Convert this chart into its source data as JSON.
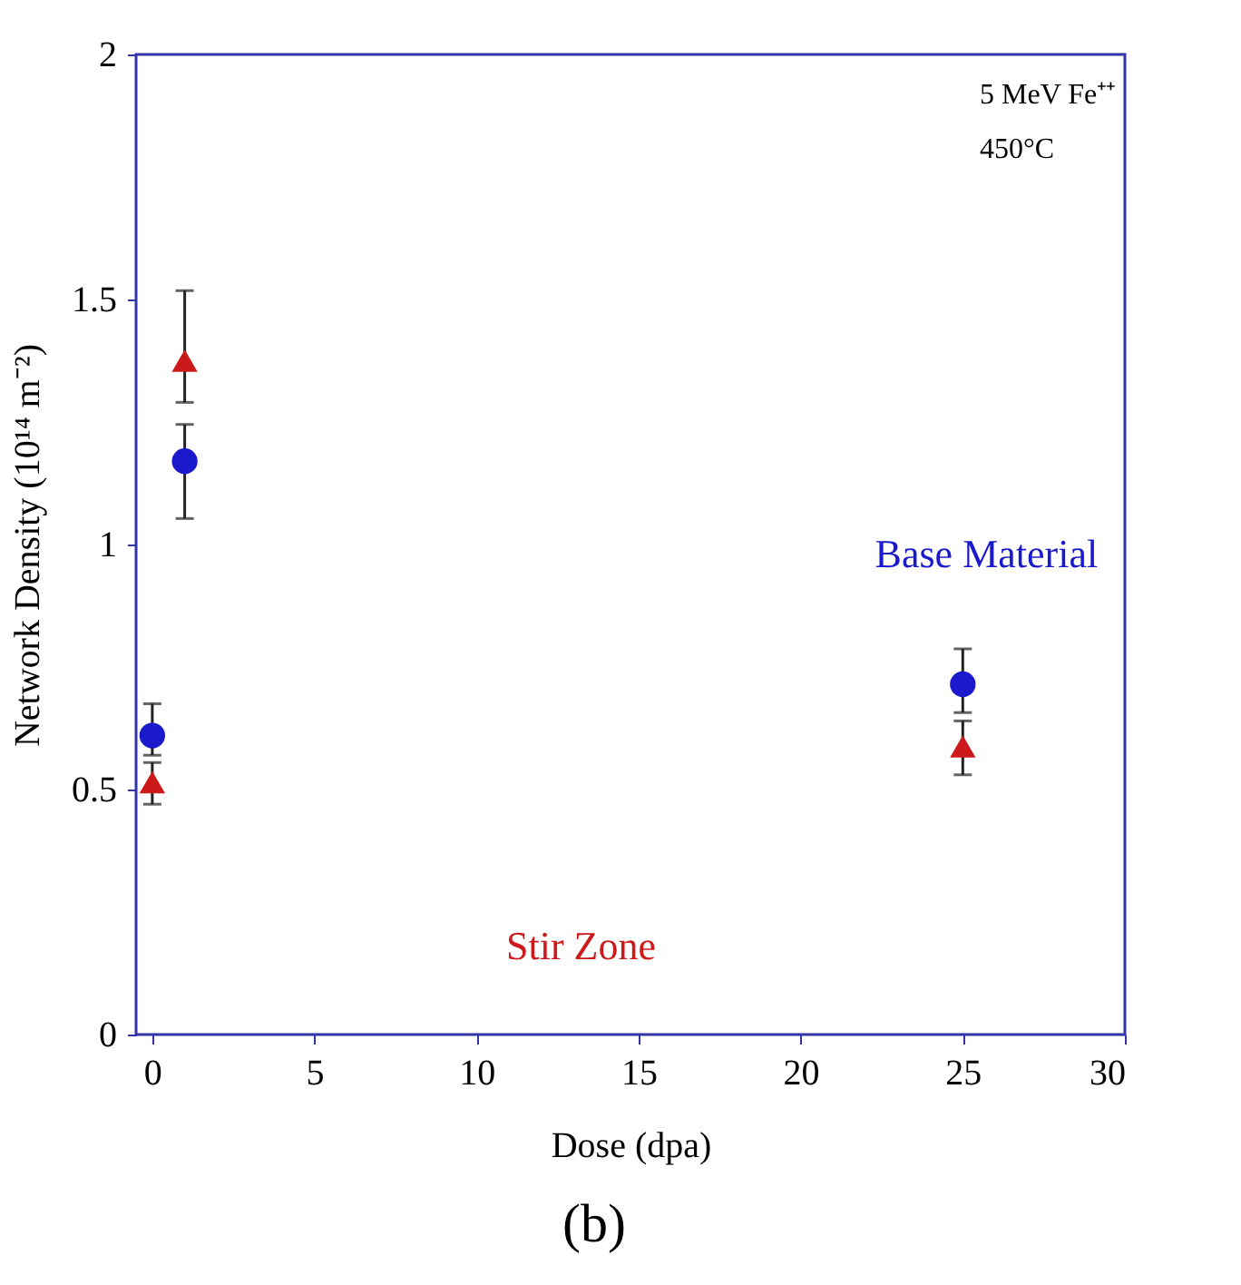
{
  "chart_data": {
    "type": "scatter",
    "xlabel": "Dose (dpa)",
    "ylabel": "Network Density (10¹⁴ m⁻²)",
    "xlim": [
      -0.5,
      30
    ],
    "xticks": [
      0,
      5,
      10,
      15,
      20,
      25,
      30
    ],
    "ylim": [
      0,
      2
    ],
    "yticks": [
      0,
      0.5,
      1,
      1.5,
      2
    ],
    "grid": false,
    "series": [
      {
        "name": "Base Material",
        "color": "#1a1acc",
        "marker": "circle",
        "x": [
          0,
          1,
          25
        ],
        "values": [
          0.61,
          1.17,
          0.715
        ],
        "errors": [
          [
            0.57,
            0.675
          ],
          [
            1.053,
            1.245
          ],
          [
            0.657,
            0.787
          ]
        ]
      },
      {
        "name": "Stir Zone",
        "color": "#cc1a1a",
        "marker": "triangle",
        "x": [
          0,
          1,
          25
        ],
        "values": [
          0.515,
          1.375,
          0.588
        ],
        "errors": [
          [
            0.47,
            0.555
          ],
          [
            1.29,
            1.518
          ],
          [
            0.53,
            0.64
          ]
        ]
      }
    ],
    "annotations": [
      "5 MeV Fe⁺⁺",
      "450°C",
      "(b)"
    ]
  }
}
